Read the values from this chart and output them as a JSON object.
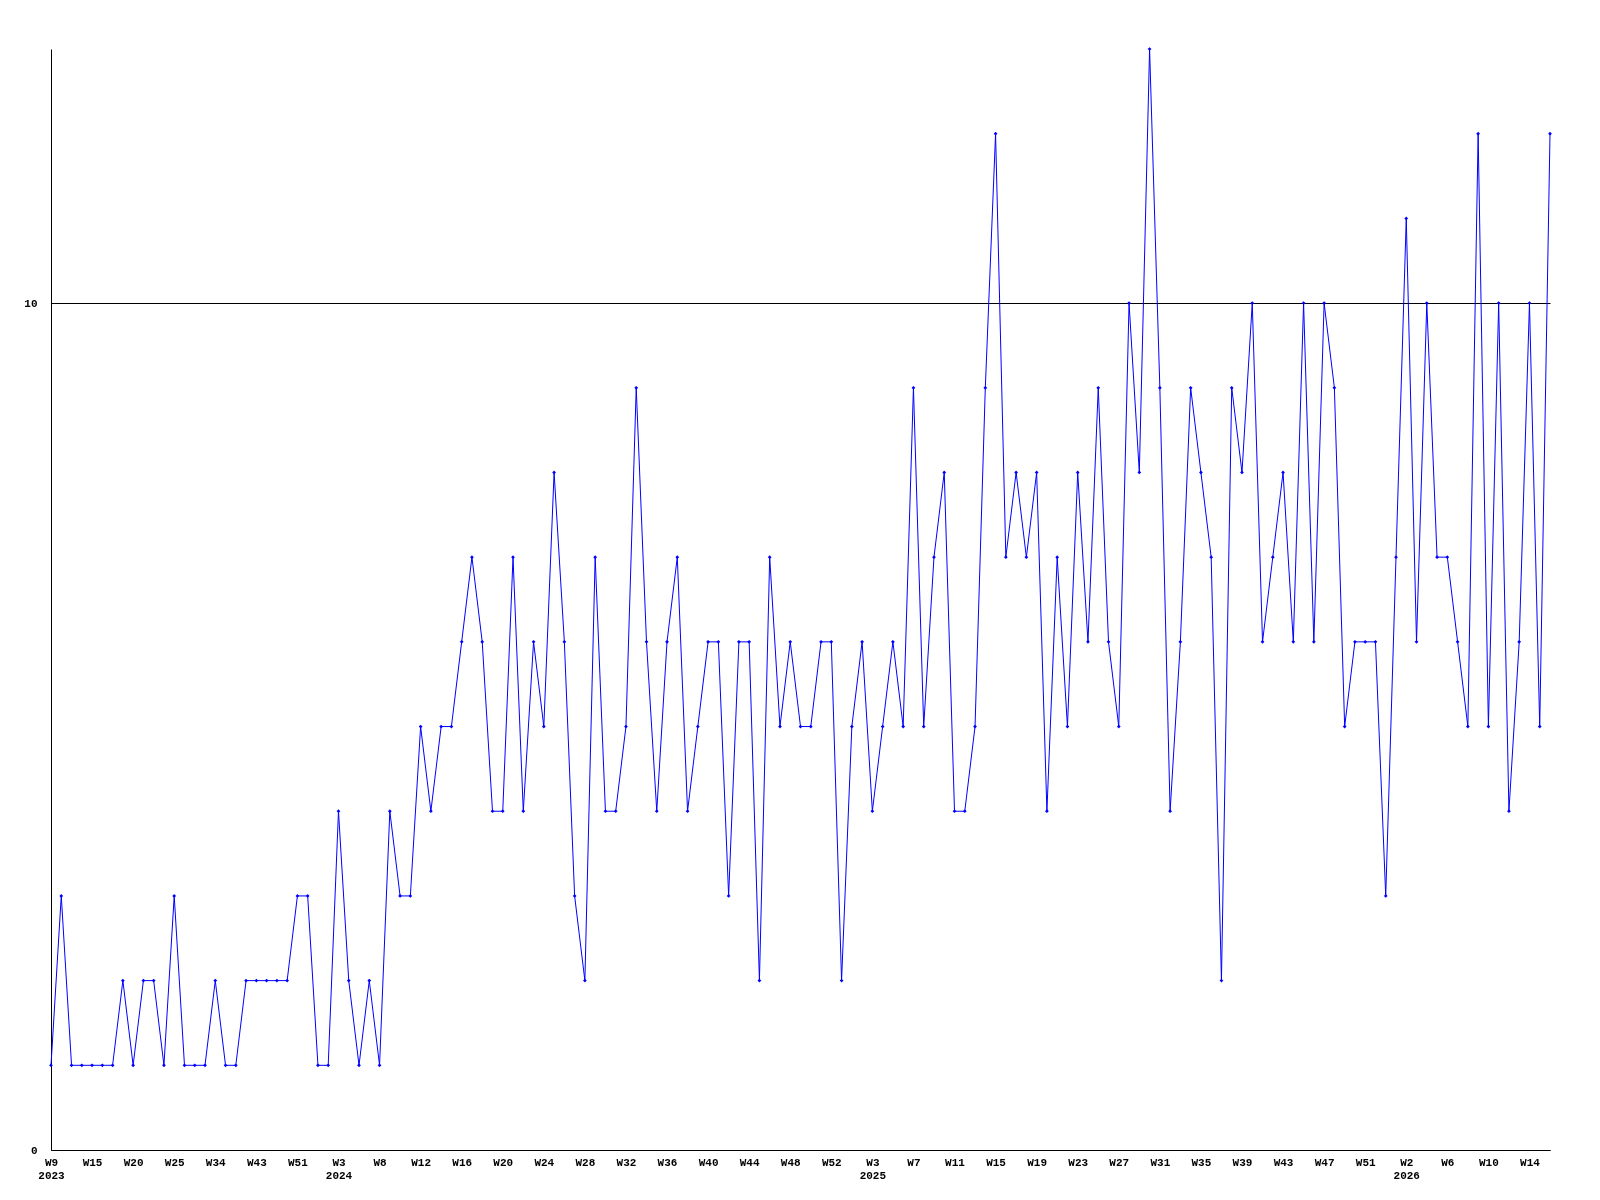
{
  "chart_data": {
    "type": "line",
    "color": "#0000ff",
    "marker": "diamond",
    "grid": "y",
    "ylim": [
      0,
      13
    ],
    "yticks": [
      0,
      10
    ],
    "categories": [
      "W9\n2023",
      null,
      null,
      null,
      "W15",
      null,
      null,
      null,
      "W20",
      null,
      null,
      null,
      "W25",
      null,
      null,
      null,
      "W34",
      null,
      null,
      null,
      "W43",
      null,
      null,
      null,
      "W51",
      null,
      null,
      null,
      "W3\n2024",
      null,
      null,
      null,
      "W8",
      null,
      null,
      null,
      "W12",
      null,
      null,
      null,
      "W16",
      null,
      null,
      null,
      "W20",
      null,
      null,
      null,
      "W24",
      null,
      null,
      null,
      "W28",
      null,
      null,
      null,
      "W32",
      null,
      null,
      null,
      "W36",
      null,
      null,
      null,
      "W40",
      null,
      null,
      null,
      "W44",
      null,
      null,
      null,
      "W48",
      null,
      null,
      null,
      "W52",
      null,
      null,
      null,
      "W3\n2025",
      null,
      null,
      null,
      "W7",
      null,
      null,
      null,
      "W11",
      null,
      null,
      null,
      "W15",
      null,
      null,
      null,
      "W19",
      null,
      null,
      null,
      "W23",
      null,
      null,
      null,
      "W27",
      null,
      null,
      null,
      "W31",
      null,
      null,
      null,
      "W35",
      null,
      null,
      null,
      "W39",
      null,
      null,
      null,
      "W43",
      null,
      null,
      null,
      "W47",
      null,
      null,
      null,
      "W51",
      null,
      null,
      null,
      "W2\n2026",
      null,
      null,
      null,
      "W6",
      null,
      null,
      null,
      "W10",
      null,
      null,
      null,
      "W14",
      null,
      null
    ],
    "values": [
      1,
      3,
      1,
      1,
      1,
      1,
      1,
      2,
      1,
      2,
      2,
      1,
      3,
      1,
      1,
      1,
      2,
      1,
      1,
      2,
      2,
      2,
      2,
      2,
      3,
      3,
      1,
      1,
      4,
      2,
      1,
      2,
      1,
      4,
      3,
      3,
      5,
      4,
      5,
      5,
      6,
      7,
      6,
      4,
      4,
      7,
      4,
      6,
      5,
      8,
      6,
      3,
      2,
      7,
      4,
      4,
      5,
      9,
      6,
      4,
      6,
      7,
      4,
      5,
      6,
      6,
      3,
      6,
      6,
      2,
      7,
      5,
      6,
      5,
      5,
      6,
      6,
      2,
      5,
      6,
      4,
      5,
      6,
      5,
      9,
      5,
      7,
      8,
      4,
      4,
      5,
      9,
      12,
      7,
      8,
      7,
      8,
      4,
      7,
      5,
      8,
      6,
      9,
      6,
      5,
      10,
      8,
      13,
      9,
      4,
      6,
      9,
      8,
      7,
      2,
      9,
      8,
      10,
      6,
      7,
      8,
      6,
      10,
      6,
      10,
      9,
      5,
      6,
      6,
      6,
      3,
      7,
      11,
      6,
      10,
      7,
      7,
      6,
      5,
      12,
      5,
      10,
      4,
      6,
      10,
      5,
      12
    ]
  }
}
